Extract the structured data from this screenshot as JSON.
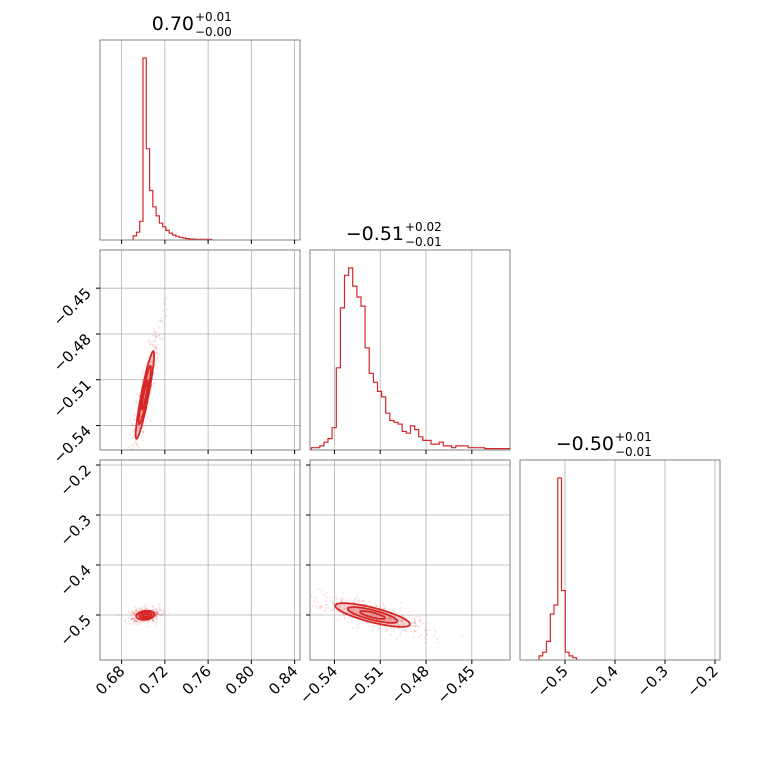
{
  "chart_data": {
    "type": "corner",
    "color": "#d62728",
    "parameters": [
      {
        "title": {
          "value": "0.70",
          "upper": "+0.01",
          "lower": "−0.00"
        },
        "range": [
          0.66,
          0.845
        ],
        "ticks": [
          0.68,
          0.72,
          0.76,
          0.8,
          0.84
        ],
        "tick_labels": [
          "0.68",
          "0.72",
          "0.76",
          "0.80",
          "0.84"
        ]
      },
      {
        "title": {
          "value": "−0.51",
          "upper": "+0.02",
          "lower": "−0.01"
        },
        "range": [
          -0.556,
          -0.425
        ],
        "ticks": [
          -0.54,
          -0.51,
          -0.48,
          -0.45
        ],
        "tick_labels": [
          "−0.54",
          "−0.51",
          "−0.48",
          "−0.45"
        ]
      },
      {
        "title": {
          "value": "−0.50",
          "upper": "+0.01",
          "lower": "−0.01"
        },
        "range": [
          -0.59,
          -0.19
        ],
        "ticks": [
          -0.5,
          -0.4,
          -0.3,
          -0.2
        ],
        "tick_labels": [
          "−0.5",
          "−0.4",
          "−0.3",
          "−0.2"
        ]
      }
    ],
    "histograms": [
      {
        "param": 0,
        "bin_start": 0.6907,
        "bin_width": 0.00303,
        "counts": [
          0.02,
          0.04,
          0.1,
          1.0,
          0.5,
          0.27,
          0.18,
          0.13,
          0.09,
          0.07,
          0.05,
          0.035,
          0.025,
          0.018,
          0.012,
          0.008,
          0.005,
          0.003,
          0.002,
          0.001,
          0.001,
          0.001,
          0.0005,
          0.0005
        ]
      },
      {
        "param": 1,
        "bin_start": -0.555,
        "bin_width": 0.0027,
        "counts": [
          0.01,
          0.01,
          0.02,
          0.04,
          0.06,
          0.12,
          0.45,
          0.78,
          0.96,
          1.0,
          0.9,
          0.84,
          0.79,
          0.56,
          0.42,
          0.37,
          0.32,
          0.29,
          0.2,
          0.16,
          0.15,
          0.14,
          0.1,
          0.09,
          0.13,
          0.11,
          0.07,
          0.05,
          0.05,
          0.03,
          0.03,
          0.04,
          0.02,
          0.02,
          0.01,
          0.02,
          0.02,
          0.02,
          0.01,
          0.01,
          0.01,
          0.01,
          0.005,
          0.005,
          0.005,
          0.005,
          0.005,
          0.005
        ]
      },
      {
        "param": 2,
        "bin_start": -0.552,
        "bin_width": 0.0075,
        "counts": [
          0.02,
          0.04,
          0.1,
          0.25,
          0.3,
          1.0,
          0.38,
          0.04,
          0.02,
          0.01
        ]
      }
    ],
    "pairs": [
      {
        "x_param": 0,
        "y_param": 1,
        "center": [
          0.7015,
          -0.52
        ],
        "cov": [
          [
            3.22e-05,
            9.92e-05
          ],
          [
            9.92e-05,
            0.000366
          ]
        ]
      },
      {
        "x_param": 0,
        "y_param": 2,
        "center": [
          0.702,
          -0.5005
        ],
        "cov": [
          [
            3.22e-05,
            6.5e-06
          ],
          [
            6.5e-06,
            3.6e-05
          ]
        ]
      },
      {
        "x_param": 1,
        "y_param": 2,
        "center": [
          -0.515,
          -0.5
        ],
        "cov": [
          [
            0.000266,
            -0.0002
          ],
          [
            -0.0002,
            0.00025
          ]
        ]
      }
    ]
  }
}
